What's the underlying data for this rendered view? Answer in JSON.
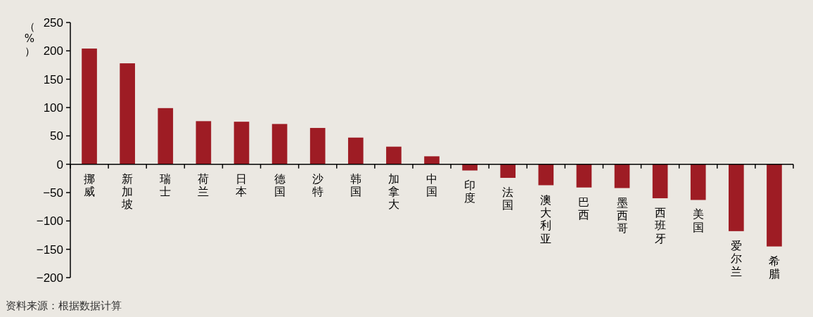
{
  "chart_data": {
    "type": "bar",
    "ylabel": "（%）",
    "categories": [
      "挪威",
      "新加坡",
      "瑞士",
      "荷兰",
      "日本",
      "德国",
      "沙特",
      "韩国",
      "加拿大",
      "中国",
      "印度",
      "法国",
      "澳大利亚",
      "巴西",
      "墨西哥",
      "西班牙",
      "美国",
      "爱尔兰",
      "希腊"
    ],
    "values": [
      204,
      178,
      99,
      76,
      75,
      71,
      64,
      47,
      31,
      14,
      -11,
      -24,
      -37,
      -41,
      -42,
      -60,
      -63,
      -118,
      -145
    ],
    "color": "#9e1c24",
    "ylim": [
      -200,
      250
    ],
    "yticks": [
      -200,
      -150,
      -100,
      -50,
      0,
      50,
      100,
      150,
      200,
      250
    ],
    "annotations": [
      "资料来源：根据数据计算"
    ]
  }
}
